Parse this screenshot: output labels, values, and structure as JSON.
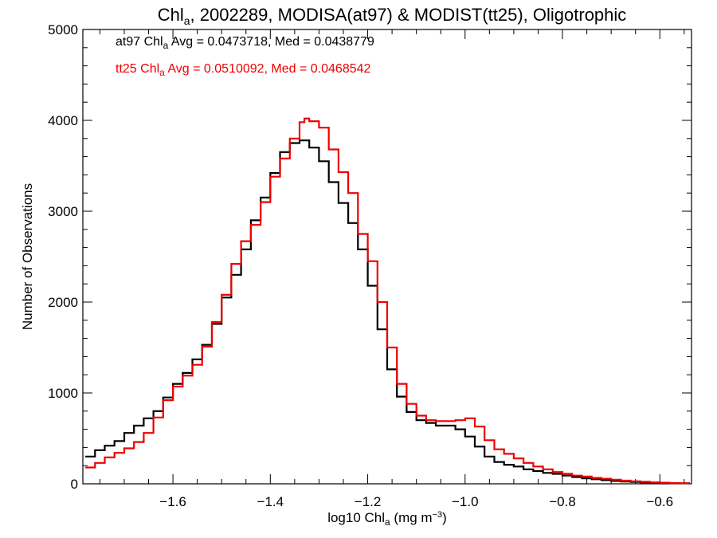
{
  "chart_data": {
    "type": "line",
    "title": {
      "pre": "Chl",
      "sub": "a",
      "post": ", 2002289, MODISA(at97) & MODIST(tt25), Oligotrophic"
    },
    "xlabel": {
      "pre": "log10 Chl",
      "sub": "a",
      "mid": " (mg m",
      "sup": "−3",
      "post": ")"
    },
    "ylabel": "Number of Observations",
    "xlim": [
      -1.785,
      -0.535
    ],
    "ylim": [
      0,
      5000
    ],
    "xticks": [
      -1.6,
      -1.4,
      -1.2,
      -1.0,
      -0.8,
      -0.6
    ],
    "xtick_labels": [
      "−1.6",
      "−1.4",
      "−1.2",
      "−1.0",
      "−0.8",
      "−0.6"
    ],
    "yticks": [
      0,
      1000,
      2000,
      3000,
      4000,
      5000
    ],
    "ytick_labels": [
      "0",
      "1000",
      "2000",
      "3000",
      "4000",
      "5000"
    ],
    "grid": false,
    "annotations": [
      {
        "pre": "at97 Chl",
        "sub": "a",
        "post": " Avg = 0.0473718, Med = 0.0438779",
        "color": "#000000"
      },
      {
        "pre": "tt25 Chl",
        "sub": "a",
        "post": " Avg = 0.0510092, Med = 0.0468542",
        "color": "#ee0000"
      }
    ],
    "series": [
      {
        "color": "#000000",
        "x": [
          -1.78,
          -1.76,
          -1.74,
          -1.72,
          -1.7,
          -1.68,
          -1.66,
          -1.64,
          -1.62,
          -1.6,
          -1.58,
          -1.56,
          -1.54,
          -1.52,
          -1.5,
          -1.48,
          -1.46,
          -1.44,
          -1.42,
          -1.4,
          -1.38,
          -1.36,
          -1.34,
          -1.33,
          -1.32,
          -1.3,
          -1.28,
          -1.26,
          -1.24,
          -1.22,
          -1.2,
          -1.18,
          -1.16,
          -1.14,
          -1.12,
          -1.1,
          -1.08,
          -1.06,
          -1.04,
          -1.02,
          -1.0,
          -0.98,
          -0.96,
          -0.94,
          -0.92,
          -0.9,
          -0.88,
          -0.86,
          -0.84,
          -0.82,
          -0.8,
          -0.78,
          -0.76,
          -0.74,
          -0.72,
          -0.7,
          -0.68,
          -0.66,
          -0.64,
          -0.62,
          -0.6,
          -0.58,
          -0.56,
          -0.54
        ],
        "y": [
          300,
          370,
          420,
          470,
          560,
          640,
          720,
          800,
          950,
          1100,
          1220,
          1370,
          1530,
          1760,
          2050,
          2300,
          2580,
          2900,
          3150,
          3420,
          3650,
          3750,
          3780,
          3780,
          3700,
          3550,
          3320,
          3090,
          2870,
          2580,
          2180,
          1700,
          1260,
          960,
          790,
          700,
          670,
          640,
          640,
          600,
          520,
          410,
          300,
          240,
          210,
          190,
          160,
          140,
          120,
          110,
          90,
          75,
          60,
          50,
          40,
          32,
          25,
          20,
          15,
          12,
          10,
          8,
          6,
          5
        ]
      },
      {
        "color": "#ee0000",
        "x": [
          -1.78,
          -1.76,
          -1.74,
          -1.72,
          -1.7,
          -1.68,
          -1.66,
          -1.64,
          -1.62,
          -1.6,
          -1.58,
          -1.56,
          -1.54,
          -1.52,
          -1.5,
          -1.48,
          -1.46,
          -1.44,
          -1.42,
          -1.4,
          -1.38,
          -1.36,
          -1.34,
          -1.33,
          -1.32,
          -1.3,
          -1.28,
          -1.26,
          -1.24,
          -1.22,
          -1.2,
          -1.18,
          -1.16,
          -1.14,
          -1.12,
          -1.1,
          -1.08,
          -1.06,
          -1.04,
          -1.02,
          -1.0,
          -0.98,
          -0.96,
          -0.94,
          -0.92,
          -0.9,
          -0.88,
          -0.86,
          -0.84,
          -0.82,
          -0.8,
          -0.78,
          -0.76,
          -0.74,
          -0.72,
          -0.7,
          -0.68,
          -0.66,
          -0.64,
          -0.62,
          -0.6,
          -0.58,
          -0.56,
          -0.54
        ],
        "y": [
          180,
          230,
          290,
          340,
          390,
          460,
          560,
          730,
          920,
          1070,
          1190,
          1310,
          1510,
          1780,
          2080,
          2420,
          2670,
          2850,
          3100,
          3380,
          3580,
          3800,
          3980,
          4020,
          3990,
          3920,
          3680,
          3430,
          3200,
          2750,
          2450,
          2000,
          1500,
          1100,
          880,
          750,
          700,
          690,
          690,
          700,
          720,
          630,
          480,
          380,
          330,
          280,
          230,
          190,
          160,
          130,
          110,
          90,
          80,
          65,
          55,
          45,
          35,
          28,
          22,
          16,
          12,
          8,
          6,
          4
        ]
      }
    ]
  }
}
